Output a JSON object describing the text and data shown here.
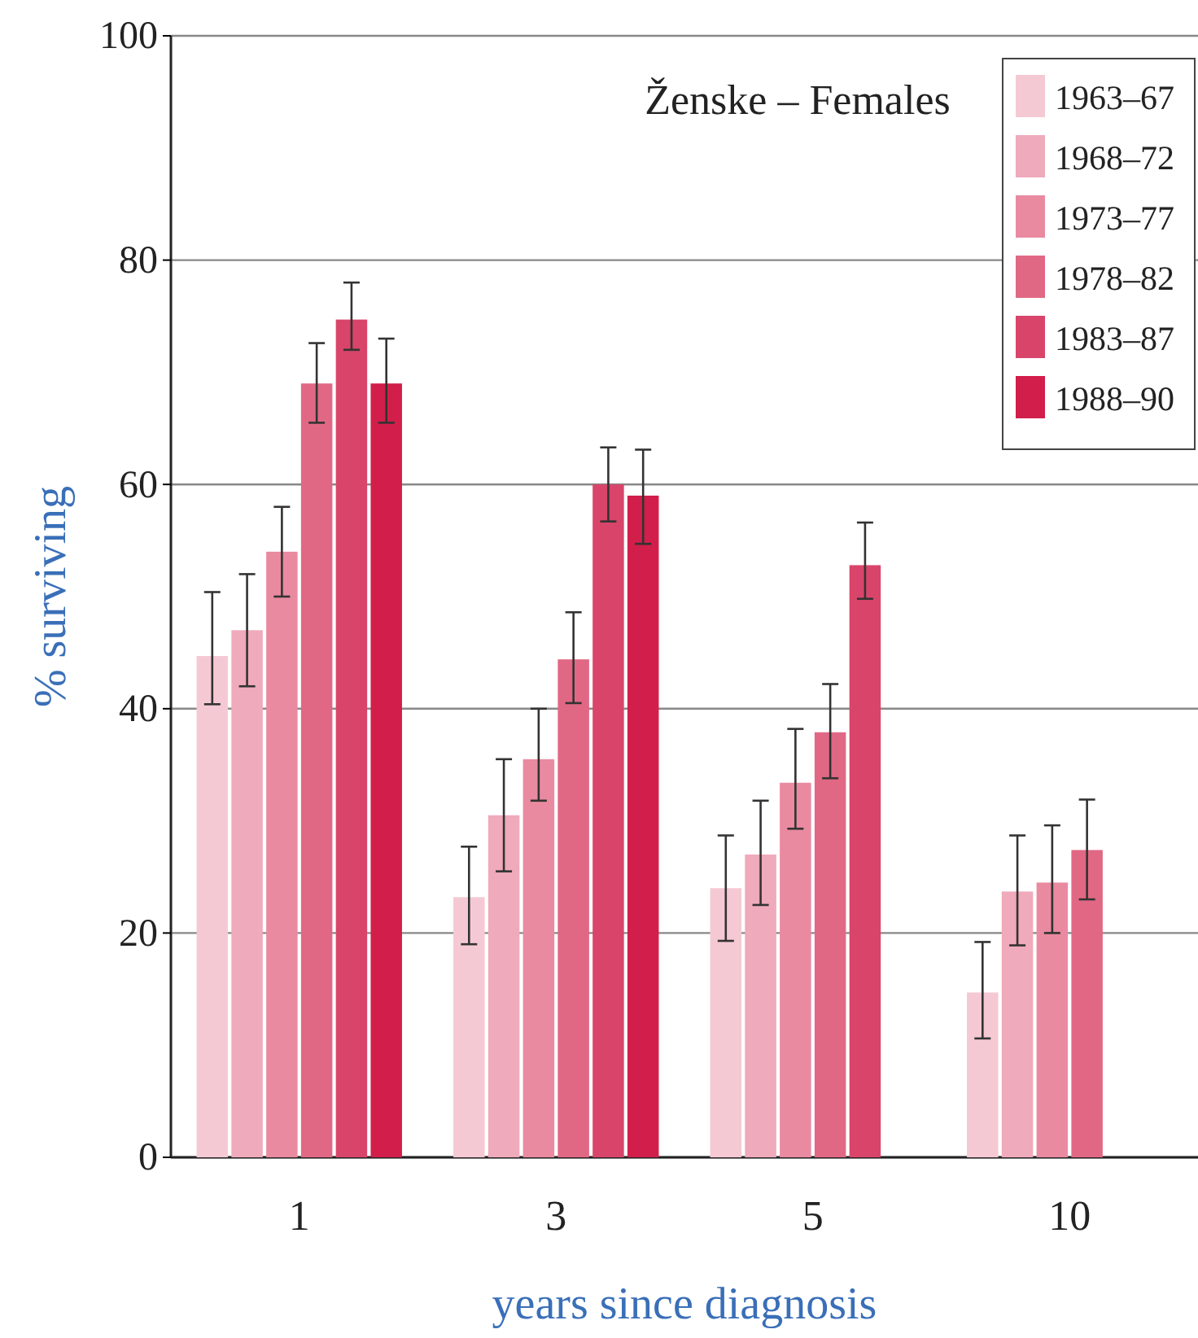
{
  "chart_data": {
    "type": "bar",
    "title": "Ženske – Females",
    "xlabel": "years since diagnosis",
    "ylabel": "% surviving",
    "categories": [
      "1",
      "3",
      "5",
      "10"
    ],
    "series": [
      {
        "name": "1963–67",
        "color": "#f5c9d3",
        "values": [
          44.7,
          23.2,
          24,
          14.7
        ],
        "errors": [
          [
            40.4,
            50.4
          ],
          [
            19,
            27.7
          ],
          [
            19.3,
            28.7
          ],
          [
            10.6,
            19.2
          ]
        ]
      },
      {
        "name": "1968–72",
        "color": "#efaabb",
        "values": [
          47,
          30.5,
          27,
          23.7
        ],
        "errors": [
          [
            42,
            52
          ],
          [
            25.5,
            35.5
          ],
          [
            22.5,
            31.8
          ],
          [
            18.9,
            28.7
          ]
        ]
      },
      {
        "name": "1973–77",
        "color": "#e98aa1",
        "values": [
          54,
          35.5,
          33.4,
          24.5
        ],
        "errors": [
          [
            50,
            58
          ],
          [
            31.8,
            40
          ],
          [
            29.3,
            38.2
          ],
          [
            20,
            29.6
          ]
        ]
      },
      {
        "name": "1978–82",
        "color": "#e16884",
        "values": [
          69,
          44.4,
          37.9,
          27.4
        ],
        "errors": [
          [
            65.5,
            72.6
          ],
          [
            40.5,
            48.6
          ],
          [
            33.8,
            42.2
          ],
          [
            23,
            31.9
          ]
        ]
      },
      {
        "name": "1983–87",
        "color": "#d9456a",
        "values": [
          74.7,
          60,
          52.8,
          null
        ],
        "errors": [
          [
            72,
            78
          ],
          [
            56.7,
            63.3
          ],
          [
            49.8,
            56.6
          ],
          null
        ]
      },
      {
        "name": "1988–90",
        "color": "#d21e4a",
        "values": [
          69,
          59,
          null,
          null
        ],
        "errors": [
          [
            65.5,
            73
          ],
          [
            54.7,
            63.1
          ],
          null,
          null
        ]
      }
    ],
    "ylim": [
      0,
      100
    ],
    "yticks": [
      0,
      20,
      40,
      60,
      80,
      100
    ],
    "grid": "y",
    "legend": "top right"
  }
}
